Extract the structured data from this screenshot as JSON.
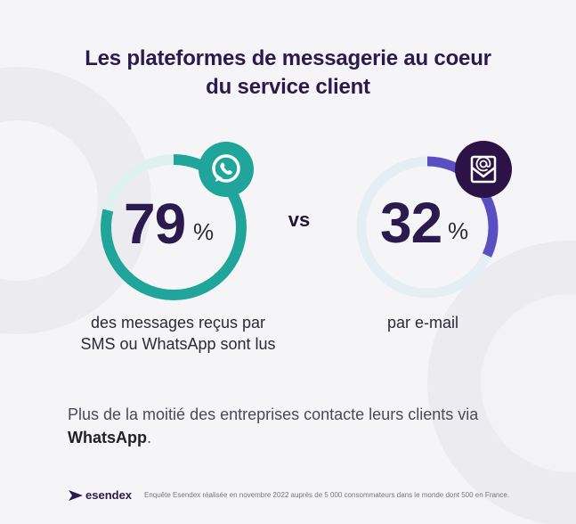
{
  "title": {
    "line1": "Les plateformes de messagerie au coeur",
    "line2": "du service client"
  },
  "stats": [
    {
      "value": "79",
      "unit": "%",
      "fraction": 0.79,
      "icon": "whatsapp-icon",
      "caption_line1": "des messages reçus par",
      "caption_line2": "SMS ou WhatsApp sont lus",
      "ring_color": "#1fa59a",
      "badge_color": "#1fa59a"
    },
    {
      "value": "32",
      "unit": "%",
      "fraction": 0.32,
      "icon": "email-icon",
      "caption_line1": "par e-mail",
      "ring_color": "#5a4fc2",
      "badge_color": "#2d1247"
    }
  ],
  "vs_label": "vs",
  "bottom": {
    "text": "Plus de la moitié des entreprises contacte leurs clients via ",
    "bold": "WhatsApp",
    "end": "."
  },
  "footer": {
    "brand": "esendex",
    "note": "Enquête Esendex réalisée en novembre 2022 auprès de 5 000 consommateurs dans le monde dont 500 en France."
  },
  "colors": {
    "title": "#2b1a4e",
    "background": "#f5f5f7"
  }
}
